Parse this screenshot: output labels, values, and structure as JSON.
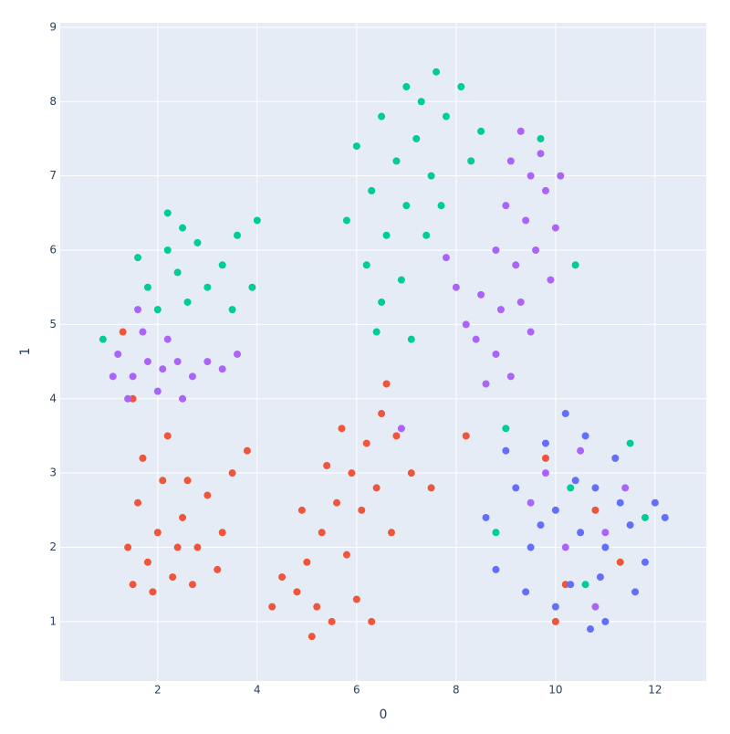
{
  "chart_data": {
    "type": "scatter",
    "x_label": "0",
    "y_label": "1",
    "xlim": [
      0.04,
      13.03
    ],
    "ylim": [
      0.2,
      9.06
    ],
    "xticks": [
      2,
      4,
      6,
      8,
      10,
      12
    ],
    "yticks": [
      1,
      2,
      3,
      4,
      5,
      6,
      7,
      8,
      9
    ],
    "grid": true,
    "series": [
      {
        "color": "#EF553B",
        "x": [
          1.5,
          1.8,
          2.0,
          2.3,
          2.5,
          2.8,
          1.6,
          2.1,
          2.7,
          3.0,
          3.3,
          1.4,
          2.4,
          1.9,
          2.6,
          3.5,
          3.2,
          1.7,
          2.2,
          1.5,
          4.5,
          4.8,
          5.2,
          5.5,
          5.0,
          5.3,
          5.6,
          5.9,
          6.2,
          6.5,
          6.1,
          5.8,
          6.0,
          5.4,
          6.4,
          6.8,
          6.6,
          5.7,
          4.9,
          6.3,
          5.1,
          7.1,
          4.3,
          6.7,
          10.2,
          10.8,
          11.3,
          9.8,
          10.0,
          1.3,
          8.2,
          7.5,
          3.8
        ],
        "y": [
          1.5,
          1.8,
          2.2,
          1.6,
          2.4,
          2.0,
          2.6,
          2.9,
          1.5,
          2.7,
          2.2,
          2.0,
          2.0,
          1.4,
          2.9,
          3.0,
          1.7,
          3.2,
          3.5,
          4.0,
          1.6,
          1.4,
          1.2,
          1.0,
          1.8,
          2.2,
          2.6,
          3.0,
          3.4,
          3.8,
          2.5,
          1.9,
          1.3,
          3.1,
          2.8,
          3.5,
          4.2,
          3.6,
          2.5,
          1.0,
          0.8,
          3.0,
          1.2,
          2.2,
          1.5,
          2.5,
          1.8,
          3.2,
          1.0,
          4.9,
          3.5,
          2.8,
          3.3
        ]
      },
      {
        "color": "#00CC96",
        "x": [
          1.8,
          2.2,
          2.5,
          2.4,
          2.8,
          3.0,
          2.0,
          3.3,
          3.6,
          2.6,
          1.6,
          3.5,
          2.2,
          4.0,
          3.9,
          0.9,
          6.5,
          7.0,
          7.3,
          6.8,
          7.2,
          6.3,
          6.6,
          7.0,
          7.5,
          7.8,
          8.1,
          6.2,
          6.5,
          6.9,
          7.4,
          7.7,
          8.3,
          6.0,
          7.6,
          8.5,
          6.4,
          7.1,
          5.8,
          9.0,
          10.3,
          11.5,
          10.6,
          11.8,
          8.8,
          9.7,
          10.4
        ],
        "y": [
          5.5,
          6.0,
          6.3,
          5.7,
          6.1,
          5.5,
          5.2,
          5.8,
          6.2,
          5.3,
          5.9,
          5.2,
          6.5,
          6.4,
          5.5,
          4.8,
          7.8,
          8.2,
          8.0,
          7.2,
          7.5,
          6.8,
          6.2,
          6.6,
          7.0,
          7.8,
          8.2,
          5.8,
          5.3,
          5.6,
          6.2,
          6.6,
          7.2,
          7.4,
          8.4,
          7.6,
          4.9,
          4.8,
          6.4,
          3.6,
          2.8,
          3.4,
          1.5,
          2.4,
          2.2,
          7.5,
          5.8
        ]
      },
      {
        "color": "#AB63FA",
        "x": [
          1.2,
          1.5,
          1.8,
          2.1,
          2.4,
          2.7,
          3.0,
          1.4,
          1.7,
          2.0,
          1.6,
          3.3,
          2.2,
          1.1,
          3.6,
          2.5,
          9.3,
          9.1,
          9.5,
          9.0,
          9.4,
          9.8,
          8.8,
          9.2,
          9.6,
          8.5,
          8.9,
          9.3,
          8.4,
          8.8,
          9.1,
          8.2,
          9.9,
          8.6,
          10.0,
          9.7,
          8.0,
          9.5,
          7.8,
          10.1,
          9.8,
          10.5,
          11.0,
          10.2,
          9.5,
          11.4,
          10.8,
          6.9
        ],
        "y": [
          4.6,
          4.3,
          4.5,
          4.4,
          4.5,
          4.3,
          4.5,
          4.0,
          4.9,
          4.1,
          5.2,
          4.4,
          4.8,
          4.3,
          4.6,
          4.0,
          7.6,
          7.2,
          7.0,
          6.6,
          6.4,
          6.8,
          6.0,
          5.8,
          6.0,
          5.4,
          5.2,
          5.3,
          4.8,
          4.6,
          4.3,
          5.0,
          5.6,
          4.2,
          6.3,
          7.3,
          5.5,
          4.9,
          5.9,
          7.0,
          3.0,
          3.3,
          2.2,
          2.0,
          2.6,
          2.8,
          1.2,
          3.6
        ]
      },
      {
        "color": "#636EFA",
        "x": [
          10.5,
          10.0,
          11.0,
          10.3,
          10.8,
          11.5,
          9.5,
          9.2,
          11.8,
          10.6,
          11.2,
          9.8,
          10.0,
          11.0,
          8.8,
          12.0,
          11.6,
          9.4,
          10.4,
          10.9,
          9.7,
          11.3,
          10.2,
          8.6,
          12.2,
          10.7,
          9.0
        ],
        "y": [
          2.2,
          2.5,
          2.0,
          1.5,
          2.8,
          2.3,
          2.0,
          2.8,
          1.8,
          3.5,
          3.2,
          3.4,
          1.2,
          1.0,
          1.7,
          2.6,
          1.4,
          1.4,
          2.9,
          1.6,
          2.3,
          2.6,
          3.8,
          2.4,
          2.4,
          0.9,
          3.3
        ]
      }
    ]
  }
}
